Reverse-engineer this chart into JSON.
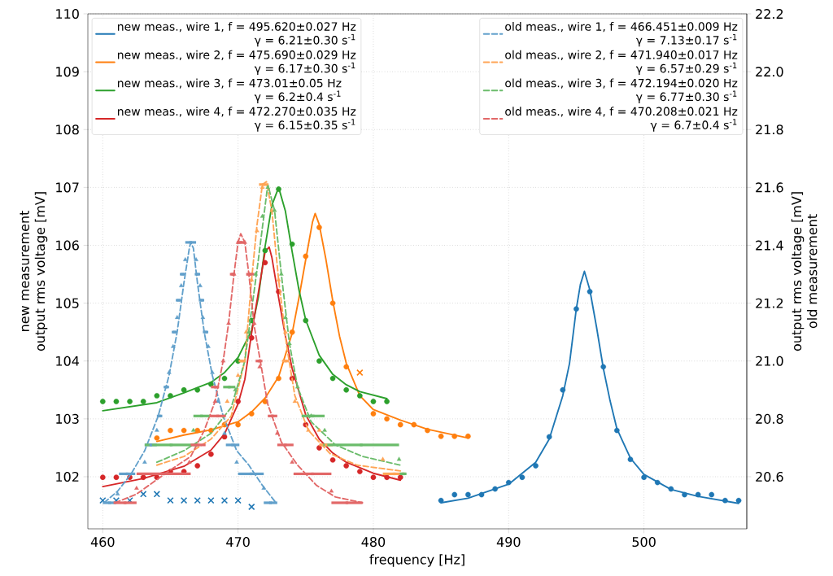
{
  "chart_data": {
    "type": "scatter",
    "xlabel": "frequency [Hz]",
    "ylabel": "new measurement\noutput rms voltage [mV]",
    "y2label": "output rms voltage [mV]\nold measurement",
    "xlim": [
      458.9,
      507.6
    ],
    "xticks": [
      460,
      470,
      480,
      490,
      500
    ],
    "ylim": [
      101.1,
      110
    ],
    "yticks": [
      102,
      103,
      104,
      105,
      106,
      107,
      108,
      109,
      110
    ],
    "y2lim": [
      20.42,
      22.2
    ],
    "y2ticks": [
      20.6,
      20.8,
      {
        "value": 21.0,
        "label": "21.0"
      },
      21.2,
      21.4,
      21.6,
      21.8,
      {
        "value": 22.0,
        "label": "22.0"
      },
      22.2
    ],
    "grid": true,
    "legend": "top",
    "series": [
      {
        "type": "line",
        "name": "new meas., wire 1, f = 495.620±0.027 Hz\nγ = 6.21±0.30 s$^{-1}$",
        "color": "#1f77b4",
        "line_style": "solid",
        "x": [
          485,
          487,
          490,
          492,
          493,
          494,
          494.5,
          495,
          495.3,
          495.6,
          496,
          496.5,
          497,
          497.5,
          498,
          499,
          500,
          502,
          504,
          507
        ],
        "values": [
          101.55,
          101.63,
          101.87,
          102.25,
          102.65,
          103.4,
          103.96,
          104.9,
          105.32,
          105.55,
          105.23,
          104.58,
          103.87,
          103.31,
          102.83,
          102.32,
          102.04,
          101.78,
          101.66,
          101.54
        ]
      },
      {
        "type": "line",
        "name": "new meas., wire 2, f = 475.690±0.029 Hz\nγ = 6.17±0.30 s$^{-1}$",
        "color": "#ff7f0e",
        "line_style": "solid",
        "x": [
          464,
          466,
          468,
          470,
          471,
          472,
          473,
          474,
          474.5,
          475,
          475.5,
          475.7,
          476,
          476.5,
          477,
          477.5,
          478,
          479,
          480,
          482,
          484,
          487
        ],
        "values": [
          102.61,
          102.72,
          102.81,
          102.95,
          103.12,
          103.36,
          103.73,
          104.48,
          105.09,
          105.75,
          106.4,
          106.55,
          106.36,
          105.75,
          105.04,
          104.43,
          103.96,
          103.4,
          103.16,
          102.98,
          102.82,
          102.67
        ]
      },
      {
        "type": "line",
        "name": "new meas., wire 3, f = 473.01±0.05 Hz\nγ = 6.2±0.4 s$^{-1}$",
        "color": "#2ca02c",
        "line_style": "solid",
        "x": [
          460,
          464,
          466,
          468,
          469,
          470,
          471,
          471.5,
          472,
          472.5,
          473,
          473.5,
          474,
          474.5,
          475,
          476,
          477,
          478,
          479,
          481
        ],
        "values": [
          103.14,
          103.28,
          103.45,
          103.63,
          103.8,
          104.06,
          104.53,
          105.1,
          105.98,
          106.69,
          107.0,
          106.59,
          105.89,
          105.23,
          104.71,
          104.1,
          103.77,
          103.59,
          103.47,
          103.35
        ]
      },
      {
        "type": "line",
        "name": "new meas., wire 4, f = 472.270±0.035 Hz\nγ = 6.15±0.35 s$^{-1}$",
        "color": "#d62728",
        "line_style": "solid",
        "x": [
          460,
          463,
          466,
          468,
          469,
          470,
          470.5,
          471,
          471.5,
          472,
          472.3,
          472.5,
          473,
          473.5,
          474,
          475,
          476,
          477,
          478,
          480,
          482
        ],
        "values": [
          101.83,
          101.97,
          102.18,
          102.46,
          102.74,
          103.26,
          103.68,
          104.48,
          105.18,
          105.89,
          105.97,
          105.79,
          105.09,
          104.43,
          103.87,
          103.07,
          102.65,
          102.41,
          102.25,
          102.06,
          101.94
        ]
      },
      {
        "marker": "circle",
        "color": "#1f77b4",
        "x": [
          485,
          486,
          487,
          488,
          489,
          490,
          491,
          492,
          493,
          494,
          495,
          496,
          497,
          498,
          499,
          500,
          501,
          502,
          503,
          504,
          505,
          506,
          507
        ],
        "values": [
          101.59,
          101.69,
          101.69,
          101.69,
          101.79,
          101.9,
          101.99,
          102.19,
          102.69,
          103.5,
          104.9,
          105.2,
          103.9,
          102.8,
          102.3,
          101.99,
          101.9,
          101.79,
          101.69,
          101.69,
          101.69,
          101.59,
          101.59
        ]
      },
      {
        "marker": "circle",
        "color": "#ff7f0e",
        "x": [
          464,
          465,
          466,
          467,
          468,
          469,
          470,
          471,
          472,
          473,
          474,
          475,
          476,
          477,
          478,
          480,
          481,
          482,
          483,
          484,
          485,
          486,
          487
        ],
        "values": [
          102.67,
          102.8,
          102.8,
          102.8,
          102.8,
          102.9,
          102.9,
          103.09,
          103.3,
          103.7,
          104.5,
          105.81,
          106.31,
          105.0,
          103.9,
          103.09,
          103.0,
          102.9,
          102.9,
          102.8,
          102.7,
          102.7,
          102.7
        ]
      },
      {
        "marker": "circle",
        "color": "#2ca02c",
        "x": [
          460,
          461,
          462,
          463,
          464,
          465,
          466,
          467,
          468,
          469,
          470,
          471,
          472,
          473,
          474,
          475,
          476,
          477,
          478,
          479,
          480,
          481
        ],
        "values": [
          103.3,
          103.3,
          103.3,
          103.3,
          103.4,
          103.4,
          103.5,
          103.5,
          103.6,
          103.7,
          104.0,
          104.7,
          105.91,
          106.97,
          106.02,
          104.7,
          104.0,
          103.7,
          103.5,
          103.4,
          103.3,
          103.3
        ]
      },
      {
        "marker": "circle",
        "color": "#d62728",
        "x": [
          460,
          461,
          462,
          463,
          464,
          465,
          466,
          467,
          468,
          469,
          470,
          471,
          472,
          473,
          474,
          475,
          476,
          477,
          478,
          479,
          480,
          481,
          482
        ],
        "values": [
          101.99,
          101.99,
          101.99,
          101.99,
          101.99,
          102.09,
          102.09,
          102.19,
          102.39,
          102.69,
          103.3,
          104.4,
          105.7,
          105.2,
          103.7,
          102.9,
          102.5,
          102.29,
          102.19,
          102.09,
          101.99,
          101.99,
          101.99
        ]
      },
      {
        "marker": "cross",
        "color": "#1f77b4",
        "x": [
          460,
          461,
          462,
          463,
          464,
          465,
          466,
          467,
          468,
          469,
          470,
          471
        ],
        "values": [
          101.59,
          101.59,
          101.59,
          101.7,
          101.7,
          101.59,
          101.59,
          101.59,
          101.59,
          101.59,
          101.59,
          101.48
        ]
      },
      {
        "marker": "cross",
        "color": "#ff7f0e",
        "x": [
          479
        ],
        "values": [
          103.8
        ]
      },
      {
        "type": "line",
        "axis": "y2",
        "name": "old meas., wire 1, f = 466.451±0.009 Hz\nγ = 7.13±0.17 s$^{-1}$",
        "color": "#62a0cb",
        "line_style": "dashed",
        "x": [
          460.1,
          461.1,
          462.1,
          463.1,
          464.1,
          464.9,
          465.5,
          466.0,
          466.4,
          466.5,
          466.7,
          467.0,
          467.5,
          468.1,
          468.9,
          469.9,
          470.8,
          471.8,
          472.8
        ],
        "values": [
          20.51,
          20.55,
          20.61,
          20.69,
          20.81,
          20.95,
          21.1,
          21.27,
          21.39,
          21.41,
          21.39,
          21.27,
          21.1,
          20.95,
          20.81,
          20.69,
          20.64,
          20.57,
          20.51
        ]
      },
      {
        "type": "line",
        "axis": "y2",
        "name": "old meas., wire 2, f = 471.940±0.017 Hz\nγ = 6.57±0.29 s$^{-1}$",
        "color": "#ffa556",
        "line_style": "dashed",
        "x": [
          464,
          466,
          468,
          469.5,
          470.5,
          471.0,
          471.4,
          471.8,
          472.1,
          472.5,
          473.0,
          473.6,
          474.2,
          475.2,
          476.8,
          478.8,
          480.4,
          482
        ],
        "values": [
          20.64,
          20.67,
          20.73,
          20.81,
          21.0,
          21.28,
          21.47,
          21.61,
          21.62,
          21.52,
          21.28,
          21.05,
          20.88,
          20.76,
          20.68,
          20.64,
          20.63,
          20.62
        ]
      },
      {
        "type": "line",
        "axis": "y2",
        "name": "old meas., wire 3, f = 472.194±0.020 Hz\nγ = 6.77±0.30 s$^{-1}$",
        "color": "#6bbc6b",
        "line_style": "dashed",
        "x": [
          464,
          466,
          468,
          469.5,
          470.5,
          471.5,
          472.2,
          472.7,
          473.2,
          473.8,
          474.4,
          475.4,
          477.2,
          479.2,
          482
        ],
        "values": [
          20.65,
          20.69,
          20.75,
          20.84,
          21.0,
          21.35,
          21.61,
          21.52,
          21.3,
          21.06,
          20.91,
          20.79,
          20.71,
          20.67,
          20.64
        ]
      },
      {
        "type": "line",
        "axis": "y2",
        "name": "old meas., wire 4, f = 470.208±0.021 Hz\nγ = 6.7±0.4 s$^{-1}$",
        "color": "#e26868",
        "line_style": "dashed",
        "x": [
          460.9,
          462.5,
          464.9,
          466.5,
          467.5,
          468.3,
          468.9,
          469.3,
          469.7,
          470.0,
          470.2,
          470.5,
          470.8,
          471.2,
          472.2,
          473.2,
          474.4,
          475.8,
          477.2,
          479.2
        ],
        "values": [
          20.51,
          20.54,
          20.62,
          20.67,
          20.76,
          20.86,
          21.0,
          21.13,
          21.3,
          21.41,
          21.44,
          21.41,
          21.3,
          21.12,
          20.85,
          20.72,
          20.64,
          20.57,
          20.53,
          20.51
        ]
      },
      {
        "axis": "y2",
        "marker": "triangle",
        "color": "#62a0cb",
        "x": [
          461.1,
          463.1,
          464.0,
          464.9,
          465.2,
          465.5,
          465.8,
          466.1,
          466.9,
          467.2,
          467.4,
          467.8,
          468.1,
          468.5,
          469.0,
          469.9,
          471.9
        ],
        "values": [
          20.54,
          20.65,
          20.76,
          20.96,
          21.05,
          21.15,
          21.26,
          21.35,
          21.35,
          21.26,
          21.15,
          21.05,
          20.96,
          20.86,
          20.75,
          20.65,
          20.56
        ]
      },
      {
        "axis": "y2",
        "marker": "triangle",
        "color": "#ffa556",
        "x": [
          469.2,
          470.0,
          470.6,
          471.0,
          471.4,
          471.8,
          472.5,
          473.0,
          473.5,
          474.2,
          475.2,
          476.0,
          480.7
        ],
        "values": [
          20.86,
          20.95,
          21.1,
          21.28,
          21.45,
          21.6,
          21.52,
          21.28,
          21.1,
          20.86,
          20.76,
          20.76,
          20.66
        ]
      },
      {
        "axis": "y2",
        "marker": "triangle",
        "color": "#6bbc6b",
        "x": [
          466.7,
          469.8,
          470.8,
          471.3,
          471.8,
          472.2,
          472.7,
          473.2,
          473.5,
          473.8,
          474.4,
          475.4,
          476.4,
          481.9
        ],
        "values": [
          20.76,
          20.9,
          21.1,
          21.3,
          21.5,
          21.6,
          21.52,
          21.3,
          21.15,
          21.06,
          20.91,
          20.81,
          20.76,
          20.66
        ]
      },
      {
        "axis": "y2",
        "marker": "triangle",
        "color": "#e26868",
        "x": [
          462.5,
          466.4,
          468.3,
          468.9,
          469.3,
          469.7,
          470.0,
          470.5,
          470.8,
          471.2,
          471.6,
          472.9,
          474.0,
          476.9
        ],
        "values": [
          20.56,
          20.65,
          20.86,
          21.0,
          21.13,
          21.3,
          21.41,
          21.41,
          21.3,
          21.13,
          20.98,
          20.75,
          20.65,
          20.55
        ]
      },
      {
        "axis": "y2",
        "marker": "square",
        "color": "#62a0cb",
        "x": [
          460.5,
          461.8,
          463.55,
          464.2,
          464.7,
          465.3,
          465.6,
          465.9,
          466.5,
          467.0,
          467.3,
          467.6,
          469.6,
          470.95,
          472.4
        ],
        "values": [
          20.51,
          20.61,
          20.71,
          20.81,
          20.91,
          21.1,
          21.21,
          21.3,
          21.41,
          21.3,
          21.21,
          21.1,
          20.71,
          20.61,
          20.51
        ],
        "xerrors": [
          0.5,
          0.6,
          0.45,
          0.2,
          0.2,
          0.2,
          0.2,
          0.2,
          0.4,
          0.2,
          0.2,
          0.2,
          0.5,
          0.95,
          0.5
        ]
      },
      {
        "axis": "y2",
        "marker": "square",
        "color": "#ffa556",
        "x": [
          470.3,
          471.9,
          473.5,
          476.5,
          481.55
        ],
        "values": [
          21.0,
          21.61,
          21.0,
          20.71,
          20.61
        ],
        "xerrors": [
          0.25,
          0.35,
          0.25,
          0.5,
          0.85
        ]
      },
      {
        "axis": "y2",
        "marker": "square",
        "color": "#6bbc6b",
        "x": [
          465.05,
          467.3,
          469.35,
          475.55,
          479.1,
          482.2
        ],
        "values": [
          20.71,
          20.81,
          20.91,
          20.81,
          20.71,
          20.61
        ],
        "xerrors": [
          1.95,
          0.6,
          0.45,
          0.85,
          2.8,
          0.25
        ]
      },
      {
        "axis": "y2",
        "marker": "square",
        "color": "#e26868",
        "x": [
          461.65,
          464.5,
          467.05,
          468.5,
          468.3,
          469.6,
          470.2,
          470.9,
          471.55,
          472.55,
          473.5,
          475.5,
          478.05
        ],
        "values": [
          20.51,
          20.61,
          20.71,
          20.81,
          20.91,
          21.3,
          21.41,
          21.3,
          21.0,
          20.81,
          20.71,
          20.61,
          20.51
        ],
        "xerrors": [
          0.85,
          2.0,
          0.55,
          0.6,
          0.3,
          0.2,
          0.3,
          0.3,
          0.25,
          0.35,
          0.6,
          1.4,
          1.15
        ]
      }
    ]
  }
}
